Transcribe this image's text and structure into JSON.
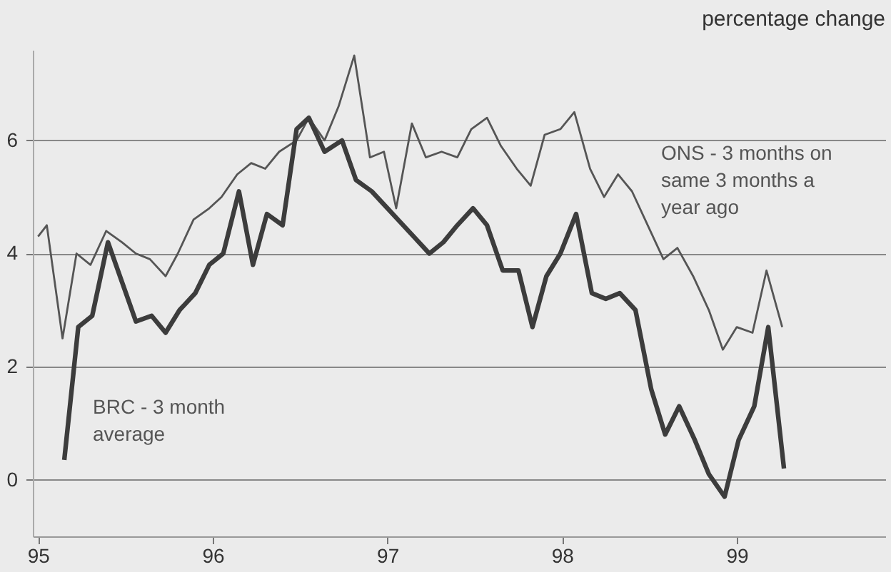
{
  "chart_data": {
    "type": "line",
    "title": "percentage change",
    "series": [
      {
        "name": "ONS - 3 months on same 3 months a year ago",
        "color": "#555555",
        "x": [
          95.0,
          95.05,
          95.14,
          95.22,
          95.3,
          95.39,
          95.48,
          95.56,
          95.64,
          95.73,
          95.8,
          95.89,
          95.98,
          96.05,
          96.14,
          96.22,
          96.3,
          96.38,
          96.48,
          96.55,
          96.64,
          96.72,
          96.81,
          96.9,
          96.98,
          97.05,
          97.14,
          97.22,
          97.31,
          97.4,
          97.48,
          97.57,
          97.65,
          97.74,
          97.82,
          97.9,
          97.99,
          98.07,
          98.16,
          98.24,
          98.32,
          98.4,
          98.49,
          98.58,
          98.66,
          98.75,
          98.84,
          98.92,
          99.0,
          99.09,
          99.17,
          99.26
        ],
        "values": [
          4.3,
          4.5,
          2.5,
          4.0,
          3.8,
          4.4,
          4.2,
          4.0,
          3.9,
          3.6,
          4.0,
          4.6,
          4.8,
          5.0,
          5.4,
          5.6,
          5.5,
          5.8,
          6.0,
          6.4,
          6.0,
          6.6,
          7.5,
          5.7,
          5.8,
          4.8,
          6.3,
          5.7,
          5.8,
          5.7,
          6.2,
          6.4,
          5.9,
          5.5,
          5.2,
          6.1,
          6.2,
          6.5,
          5.5,
          5.0,
          5.4,
          5.1,
          4.5,
          3.9,
          4.1,
          3.6,
          3.0,
          2.3,
          2.7,
          2.6,
          3.7,
          2.7
        ]
      },
      {
        "name": "BRC - 3 month average",
        "color": "#3c3c3c",
        "x": [
          95.15,
          95.23,
          95.31,
          95.4,
          95.48,
          95.56,
          95.65,
          95.73,
          95.81,
          95.9,
          95.98,
          96.06,
          96.15,
          96.23,
          96.31,
          96.4,
          96.48,
          96.55,
          96.64,
          96.74,
          96.82,
          96.91,
          97.0,
          97.06,
          97.15,
          97.24,
          97.32,
          97.4,
          97.49,
          97.57,
          97.66,
          97.75,
          97.83,
          97.91,
          97.99,
          98.08,
          98.17,
          98.25,
          98.33,
          98.42,
          98.51,
          98.59,
          98.67,
          98.76,
          98.84,
          98.93,
          99.01,
          99.1,
          99.18,
          99.27
        ],
        "values": [
          0.35,
          2.7,
          2.9,
          4.2,
          3.5,
          2.8,
          2.9,
          2.6,
          3.0,
          3.3,
          3.8,
          4.0,
          5.1,
          3.8,
          4.7,
          4.5,
          6.2,
          6.4,
          5.8,
          6.0,
          5.3,
          5.1,
          4.8,
          4.6,
          4.3,
          4.0,
          4.2,
          4.5,
          4.8,
          4.5,
          3.7,
          3.7,
          2.7,
          3.6,
          4.0,
          4.7,
          3.3,
          3.2,
          3.3,
          3.0,
          1.6,
          0.8,
          1.3,
          0.7,
          0.1,
          -0.3,
          0.7,
          1.3,
          2.7,
          0.2
        ]
      }
    ],
    "xlim": [
      94.97,
      99.85
    ],
    "xticks": [
      95,
      96,
      97,
      98,
      99
    ],
    "ylim": [
      -1,
      7.6
    ],
    "yticks": [
      0,
      2,
      4,
      6
    ],
    "grid": "y",
    "marker": "none",
    "line_style": "solid"
  }
}
